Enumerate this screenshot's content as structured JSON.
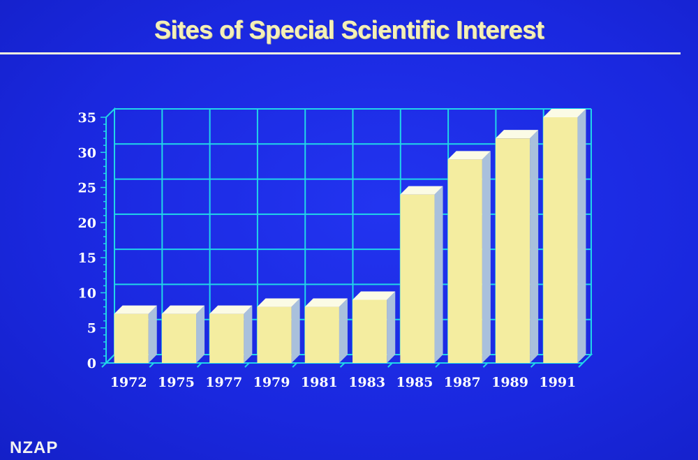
{
  "chart_data": {
    "type": "bar",
    "title": "Sites of Special Scientific Interest",
    "xlabel": "",
    "ylabel": "",
    "categories": [
      "1972",
      "1975",
      "1977",
      "1979",
      "1981",
      "1983",
      "1985",
      "1987",
      "1989",
      "1991"
    ],
    "values": [
      7,
      7,
      7,
      8,
      8,
      9,
      24,
      29,
      32,
      35
    ],
    "ylim": [
      0,
      35
    ],
    "yticks": [
      "0",
      "5",
      "10",
      "15",
      "20",
      "25",
      "30",
      "35"
    ],
    "grid": true,
    "bar_color": "#f4eda0",
    "grid_color": "#21d6e8"
  },
  "logo": {
    "text": "NZAP"
  }
}
